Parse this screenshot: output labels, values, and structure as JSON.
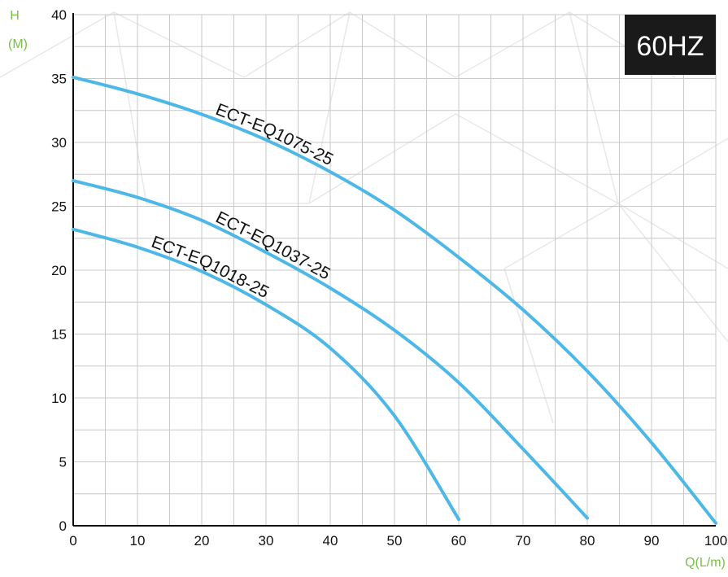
{
  "colors": {
    "curve": "#4db8e8",
    "axis_label": "#7ac143",
    "grid": "#c8c8c8",
    "badge_bg": "#1a1a1a",
    "badge_text": "#ffffff"
  },
  "chart_data": {
    "type": "line",
    "badge": "60HZ",
    "ylabel_line1": "H",
    "ylabel_line2": "(M)",
    "xlabel": "Q(L/m)",
    "xlim": [
      0,
      100
    ],
    "ylim": [
      0,
      40
    ],
    "xticks": [
      0,
      10,
      20,
      30,
      40,
      50,
      60,
      70,
      80,
      90,
      100
    ],
    "yticks": [
      0,
      5,
      10,
      15,
      20,
      25,
      30,
      35,
      40
    ],
    "grid": true,
    "series": [
      {
        "name": "ECT-EQ1075-25",
        "x": [
          0,
          10,
          20,
          30,
          40,
          50,
          60,
          70,
          80,
          90,
          100
        ],
        "y": [
          35.1,
          33.8,
          32.2,
          30.2,
          27.7,
          24.7,
          21.0,
          16.9,
          12.1,
          6.5,
          0.2
        ]
      },
      {
        "name": "ECT-EQ1037-25",
        "x": [
          0,
          10,
          20,
          30,
          40,
          50,
          60,
          70,
          80
        ],
        "y": [
          27.0,
          25.7,
          23.9,
          21.4,
          18.6,
          15.3,
          11.2,
          6.0,
          0.6
        ]
      },
      {
        "name": "ECT-EQ1018-25",
        "x": [
          0,
          10,
          20,
          30,
          40,
          50,
          60
        ],
        "y": [
          23.2,
          21.8,
          19.9,
          17.3,
          13.9,
          8.6,
          0.5
        ]
      }
    ]
  }
}
